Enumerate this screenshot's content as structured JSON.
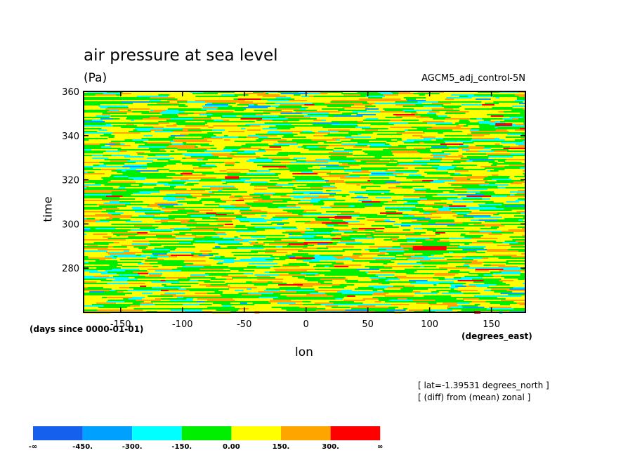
{
  "chart_data": {
    "type": "heatmap",
    "title": "air pressure at sea level",
    "units": "(Pa)",
    "run_label": "AGCM5_adj_control-5N",
    "xlabel": "lon",
    "ylabel": "time",
    "x_units": "(degrees_east)",
    "y_units": "(days since 0000-01-01)",
    "xlim": [
      -180,
      177.5
    ],
    "ylim": [
      260,
      360
    ],
    "x_ticks": [
      -150,
      -100,
      -50,
      0,
      50,
      100,
      150
    ],
    "x_tick_labels": [
      "-150",
      "-100",
      "-50",
      "0",
      "50",
      "100",
      "150"
    ],
    "y_ticks": [
      280,
      300,
      320,
      340,
      360
    ],
    "y_tick_labels": [
      "280",
      "300",
      "320",
      "340",
      "360"
    ],
    "annotations": [
      "[ lat=-1.39531 degrees_north ]",
      "[ (diff) from (mean) zonal ]"
    ],
    "colorbar": {
      "levels": [
        "-∞",
        "-450.",
        "-300.",
        "-150.",
        "0.00",
        "150.",
        "300.",
        "∞"
      ],
      "colors": [
        "#1560ec",
        "#00a0ff",
        "#00ffff",
        "#00ee00",
        "#ffff00",
        "#ffa500",
        "#ff0000"
      ]
    },
    "field_description": "Noisy zonally-elongated anomaly field dominated by green and yellow bands (-150 to 150 Pa) with scattered orange, cyan and rare red patches"
  }
}
